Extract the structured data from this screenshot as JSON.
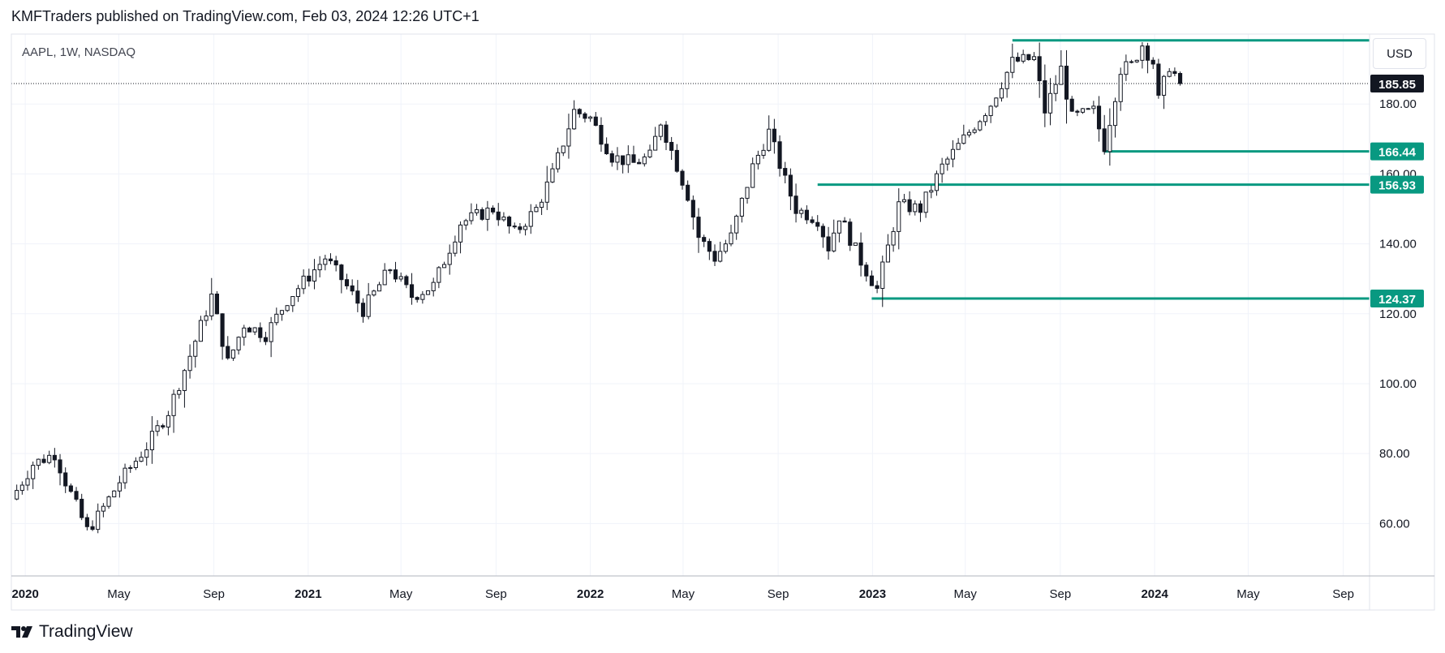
{
  "header": {
    "published": "KMFTraders published on TradingView.com, Feb 03, 2024 12:26 UTC+1"
  },
  "footer": {
    "brand": "TradingView"
  },
  "currency_button": "USD",
  "colors": {
    "level_line": "#089981",
    "candle_up_fill": "#ffffff",
    "candle_down_fill": "#131722",
    "candle_border": "#131722",
    "grid": "#f0f3fa",
    "last_price_bg": "#131722"
  },
  "chart_data": {
    "type": "candlestick",
    "symbol_label": "AAPL, 1W, NASDAQ",
    "ylim": [
      45,
      200
    ],
    "xlim": [
      "2019-12-14",
      "2024-10-05"
    ],
    "y_ticks": [
      "60.00",
      "80.00",
      "100.00",
      "120.00",
      "140.00",
      "160.00",
      "180.00"
    ],
    "x_ticks": [
      {
        "date": "2020-01-01",
        "label": "2020",
        "bold": true
      },
      {
        "date": "2020-05-01",
        "label": "May",
        "bold": false
      },
      {
        "date": "2020-09-01",
        "label": "Sep",
        "bold": false
      },
      {
        "date": "2021-01-01",
        "label": "2021",
        "bold": true
      },
      {
        "date": "2021-05-01",
        "label": "May",
        "bold": false
      },
      {
        "date": "2021-09-01",
        "label": "Sep",
        "bold": false
      },
      {
        "date": "2022-01-01",
        "label": "2022",
        "bold": true
      },
      {
        "date": "2022-05-01",
        "label": "May",
        "bold": false
      },
      {
        "date": "2022-09-01",
        "label": "Sep",
        "bold": false
      },
      {
        "date": "2023-01-01",
        "label": "2023",
        "bold": true
      },
      {
        "date": "2023-05-01",
        "label": "May",
        "bold": false
      },
      {
        "date": "2023-09-01",
        "label": "Sep",
        "bold": false
      },
      {
        "date": "2024-01-01",
        "label": "2024",
        "bold": true
      },
      {
        "date": "2024-05-01",
        "label": "May",
        "bold": false
      },
      {
        "date": "2024-09-01",
        "label": "Sep",
        "bold": false
      }
    ],
    "last_price": {
      "value": 185.85,
      "label": "185.85"
    },
    "levels": [
      {
        "value": 198.2,
        "start": "2023-07-01",
        "label": ""
      },
      {
        "value": 166.44,
        "start": "2023-10-28",
        "label": "166.44"
      },
      {
        "value": 156.93,
        "start": "2022-10-22",
        "label": "156.93"
      },
      {
        "value": 124.37,
        "start": "2022-12-31",
        "label": "124.37"
      }
    ],
    "anchors": [
      [
        "2019-12-14",
        67
      ],
      [
        "2020-01-11",
        77
      ],
      [
        "2020-02-08",
        80
      ],
      [
        "2020-02-22",
        72
      ],
      [
        "2020-03-21",
        58
      ],
      [
        "2020-04-04",
        62
      ],
      [
        "2020-05-02",
        72
      ],
      [
        "2020-06-06",
        82
      ],
      [
        "2020-07-04",
        92
      ],
      [
        "2020-08-01",
        108
      ],
      [
        "2020-08-29",
        125
      ],
      [
        "2020-09-19",
        106
      ],
      [
        "2020-10-10",
        117
      ],
      [
        "2020-11-07",
        114
      ],
      [
        "2020-12-05",
        124
      ],
      [
        "2021-01-23",
        136
      ],
      [
        "2021-02-13",
        130
      ],
      [
        "2021-03-13",
        121
      ],
      [
        "2021-04-17",
        133
      ],
      [
        "2021-05-15",
        125
      ],
      [
        "2021-06-12",
        128
      ],
      [
        "2021-07-17",
        146
      ],
      [
        "2021-08-28",
        150
      ],
      [
        "2021-09-25",
        143
      ],
      [
        "2021-10-23",
        150
      ],
      [
        "2021-11-13",
        160
      ],
      [
        "2021-12-11",
        178
      ],
      [
        "2022-01-01",
        176
      ],
      [
        "2022-01-29",
        165
      ],
      [
        "2022-02-26",
        163
      ],
      [
        "2022-03-19",
        165
      ],
      [
        "2022-04-02",
        175
      ],
      [
        "2022-05-07",
        154
      ],
      [
        "2022-05-21",
        142
      ],
      [
        "2022-06-11",
        136
      ],
      [
        "2022-07-02",
        142
      ],
      [
        "2022-07-30",
        162
      ],
      [
        "2022-08-20",
        172
      ],
      [
        "2022-09-10",
        158
      ],
      [
        "2022-09-24",
        150
      ],
      [
        "2022-10-22",
        147
      ],
      [
        "2022-11-05",
        139
      ],
      [
        "2022-11-19",
        148
      ],
      [
        "2022-12-17",
        135
      ],
      [
        "2023-01-07",
        127
      ],
      [
        "2023-02-04",
        151
      ],
      [
        "2023-03-04",
        150
      ],
      [
        "2023-04-01",
        162
      ],
      [
        "2023-05-06",
        172
      ],
      [
        "2023-06-03",
        180
      ],
      [
        "2023-07-01",
        192
      ],
      [
        "2023-07-29",
        193
      ],
      [
        "2023-08-12",
        178
      ],
      [
        "2023-09-02",
        190
      ],
      [
        "2023-09-16",
        176
      ],
      [
        "2023-10-14",
        178
      ],
      [
        "2023-10-28",
        168
      ],
      [
        "2023-11-18",
        190
      ],
      [
        "2023-12-02",
        191
      ],
      [
        "2023-12-16",
        197
      ],
      [
        "2023-12-30",
        192
      ],
      [
        "2024-01-06",
        181
      ],
      [
        "2024-01-20",
        191
      ],
      [
        "2024-02-03",
        185.85
      ]
    ]
  }
}
